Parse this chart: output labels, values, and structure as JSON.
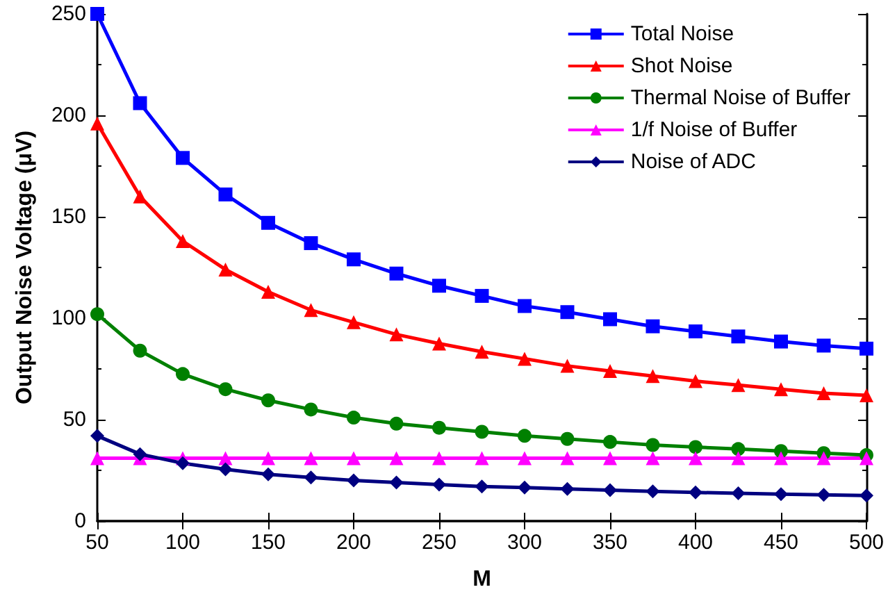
{
  "chart_data": {
    "type": "line",
    "xlabel": "M",
    "ylabel": "Output Noise Voltage (μV)",
    "x": [
      50,
      75,
      100,
      125,
      150,
      175,
      200,
      225,
      250,
      275,
      300,
      325,
      350,
      375,
      400,
      425,
      450,
      475,
      500
    ],
    "series": [
      {
        "name": "Total Noise",
        "color": "#0000ff",
        "marker": "square",
        "values": [
          250,
          206,
          179,
          161,
          147,
          137,
          129,
          122,
          116,
          111,
          106,
          103,
          99.5,
          96,
          93.5,
          91,
          88.5,
          86.5,
          85
        ]
      },
      {
        "name": "Shot Noise",
        "color": "#ff0000",
        "marker": "triangle",
        "values": [
          196,
          160,
          138,
          124,
          113,
          104,
          98,
          92,
          87.5,
          83.5,
          80,
          76.5,
          74,
          71.5,
          69,
          67,
          65,
          63,
          62
        ]
      },
      {
        "name": "Thermal Noise of Buffer",
        "color": "#008000",
        "marker": "circle",
        "values": [
          102,
          84,
          72.5,
          65,
          59.5,
          55,
          51,
          48,
          46,
          44,
          42,
          40.5,
          39,
          37.5,
          36.5,
          35.5,
          34.5,
          33.5,
          32.5
        ]
      },
      {
        "name": "1/f Noise of Buffer",
        "color": "#ff00ff",
        "marker": "triangle",
        "values": [
          31,
          31,
          31,
          31,
          31,
          31,
          31,
          31,
          31,
          31,
          31,
          31,
          31,
          31,
          31,
          31,
          31,
          31,
          31
        ]
      },
      {
        "name": "Noise of ADC",
        "color": "#000080",
        "marker": "diamond",
        "values": [
          42,
          33,
          28.5,
          25.5,
          23,
          21.5,
          20,
          19,
          18,
          17,
          16.5,
          15.8,
          15.2,
          14.6,
          14.1,
          13.7,
          13.3,
          12.9,
          12.6
        ]
      }
    ],
    "xlim": [
      50,
      500
    ],
    "xticks": [
      50,
      100,
      150,
      200,
      250,
      300,
      350,
      400,
      450,
      500
    ],
    "ylim": [
      0,
      250
    ],
    "yticks": [
      0,
      50,
      100,
      150,
      200,
      250
    ],
    "legend": "top right",
    "line_style": "solid"
  }
}
